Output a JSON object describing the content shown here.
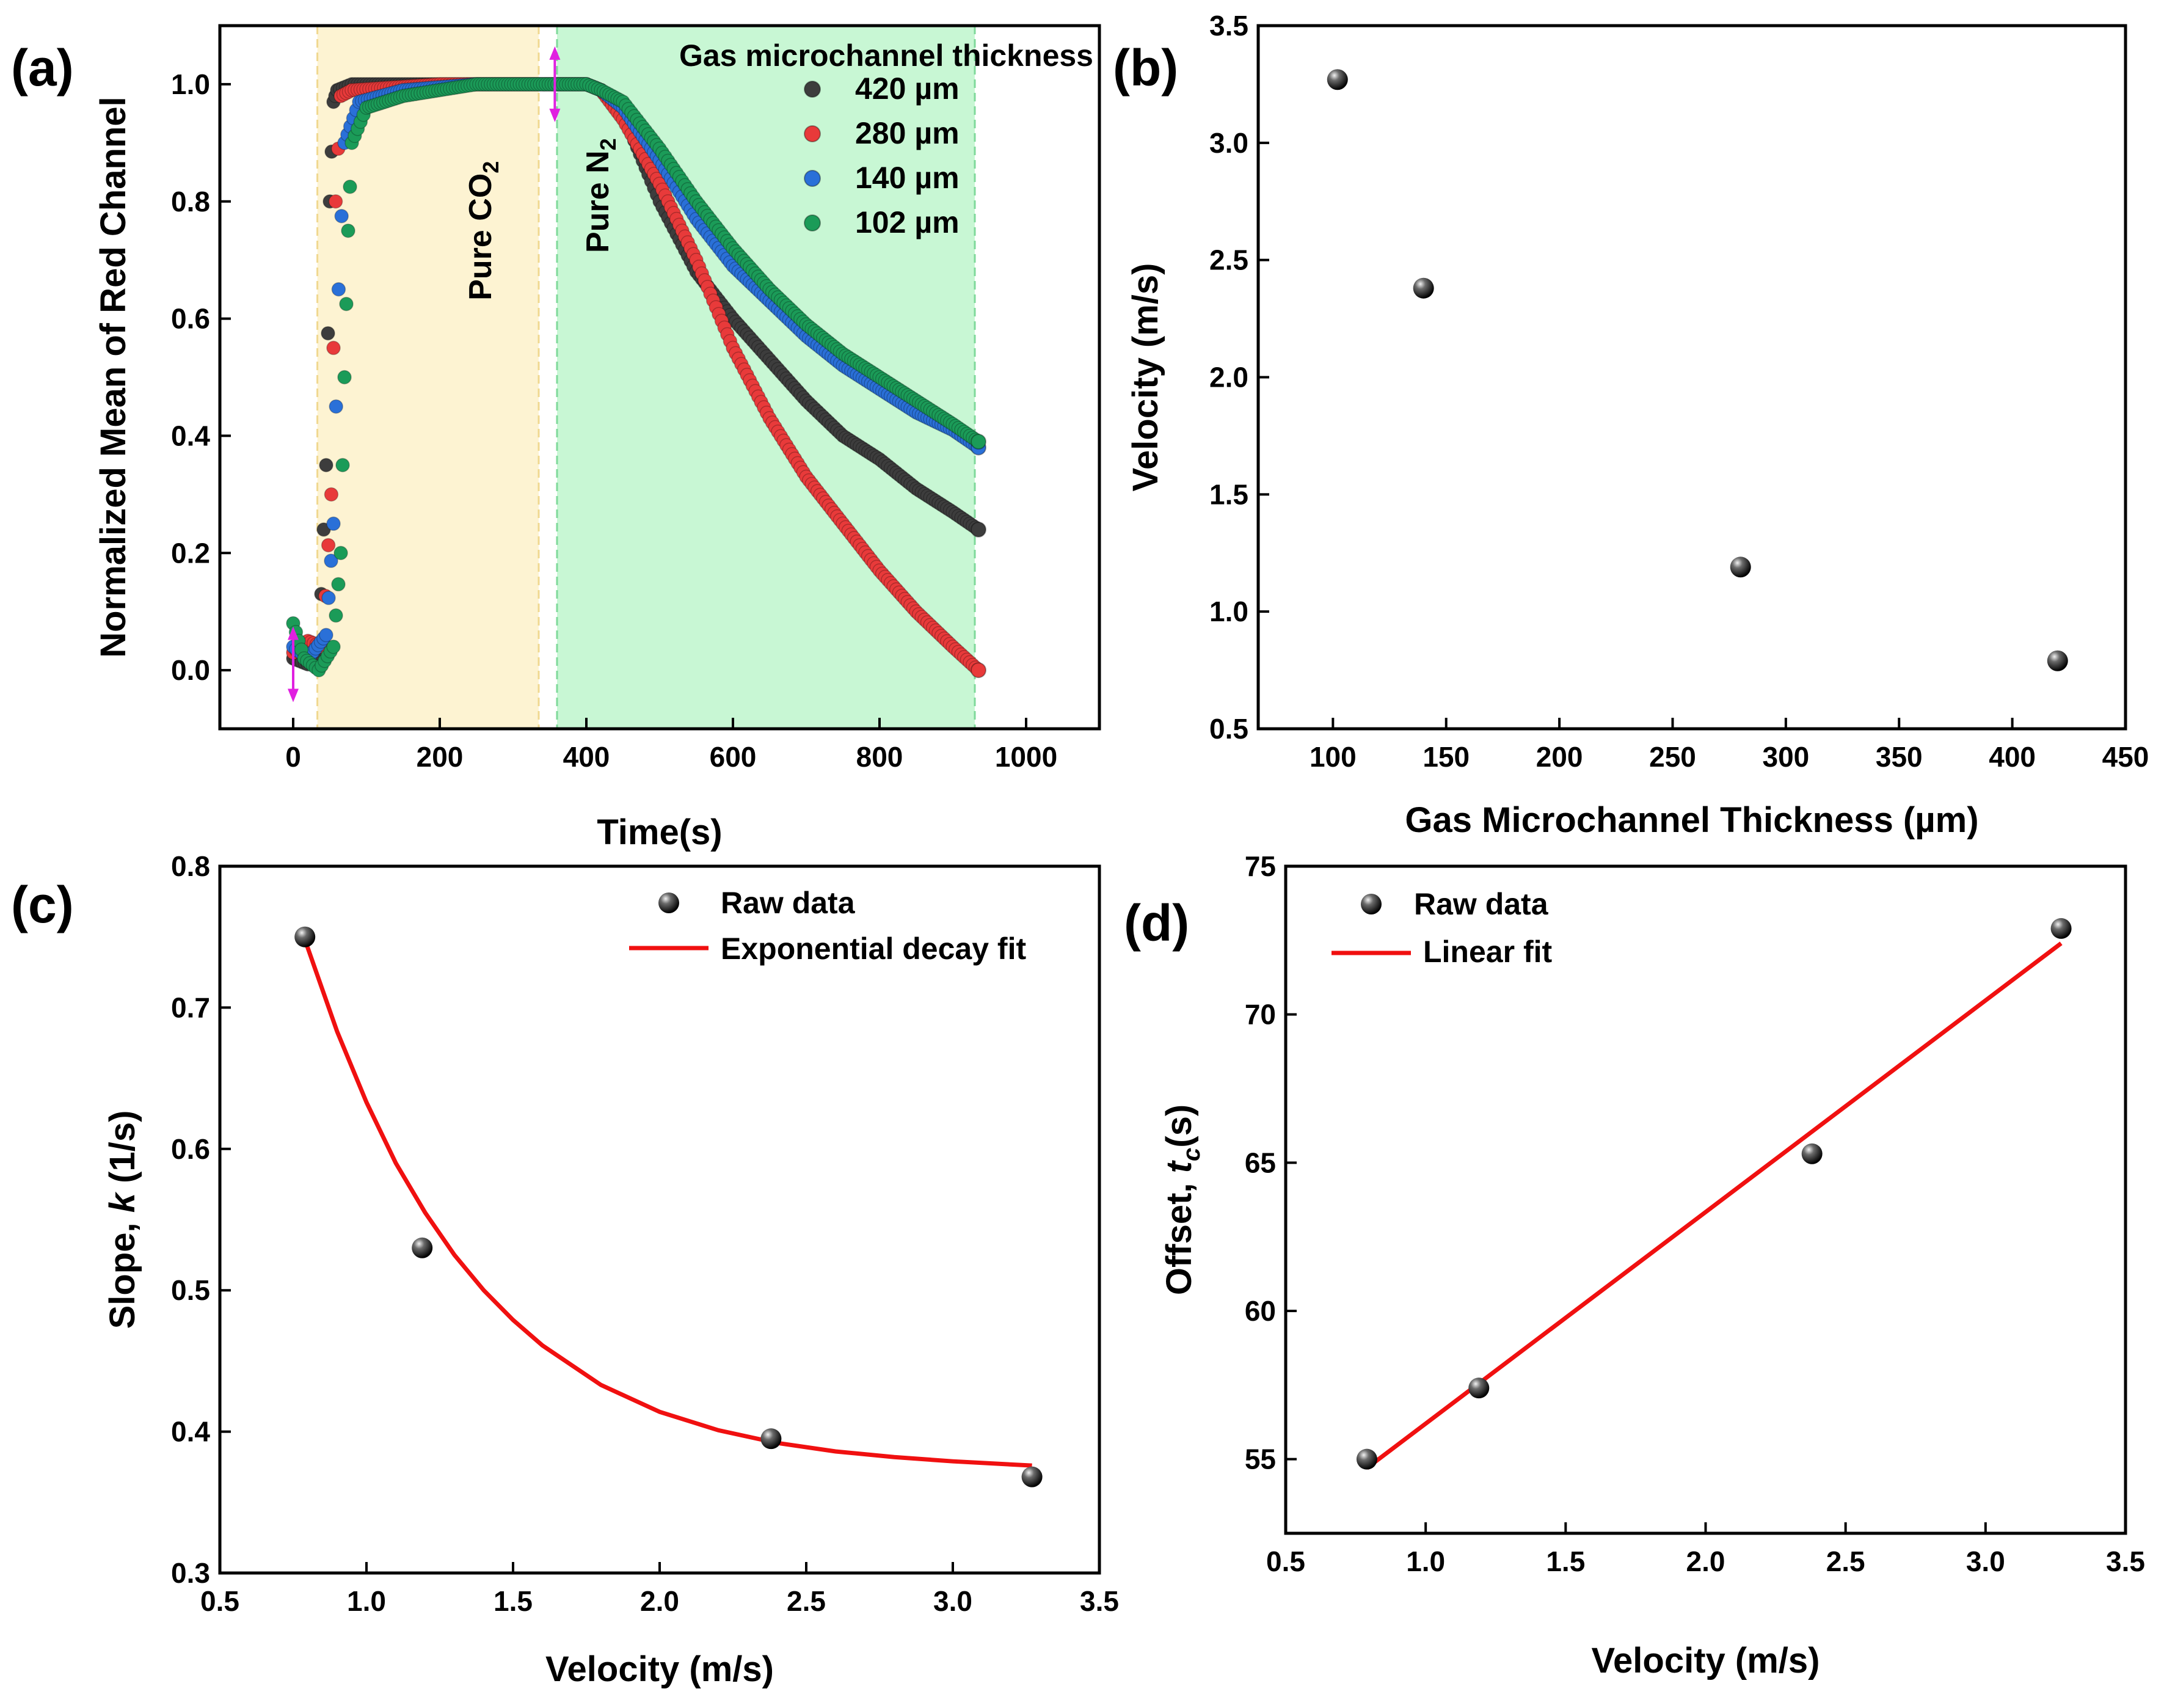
{
  "chart_data": [
    {
      "id": "a",
      "panel_label": "(a)",
      "type": "scatter",
      "xlabel": "Time(s)",
      "ylabel": "Normalized Mean of Red Channel",
      "xlim": [
        -100,
        1100
      ],
      "ylim": [
        -0.1,
        1.1
      ],
      "xticks": [
        0,
        200,
        400,
        600,
        800,
        1000
      ],
      "yticks": [
        0.0,
        0.2,
        0.4,
        0.6,
        0.8,
        1.0
      ],
      "ytick_labels": [
        "0.0",
        "0.2",
        "0.4",
        "0.6",
        "0.8",
        "1.0"
      ],
      "legend_title": "Gas microchannel thickness",
      "legend_position": "top-right",
      "regions": [
        {
          "label": "Pure CO",
          "subscript": "2",
          "x_range": [
            33,
            335
          ],
          "color": "#fdf3d2"
        },
        {
          "label": "Pure N",
          "subscript": "2",
          "x_range": [
            360,
            930
          ],
          "color": "#c8f7d4"
        }
      ],
      "markers_x": [
        0,
        357
      ],
      "series": [
        {
          "name": "420 µm",
          "color": "#3d3d3d",
          "points": [
            [
              0,
              0.02
            ],
            [
              20,
              0.01
            ],
            [
              35,
              0.02
            ],
            [
              45,
              0.35
            ],
            [
              50,
              0.8
            ],
            [
              55,
              0.97
            ],
            [
              60,
              0.99
            ],
            [
              80,
              1.0
            ],
            [
              200,
              1.0
            ],
            [
              300,
              1.0
            ],
            [
              400,
              1.0
            ],
            [
              420,
              0.99
            ],
            [
              450,
              0.95
            ],
            [
              500,
              0.8
            ],
            [
              550,
              0.68
            ],
            [
              600,
              0.6
            ],
            [
              650,
              0.53
            ],
            [
              700,
              0.46
            ],
            [
              750,
              0.4
            ],
            [
              800,
              0.36
            ],
            [
              850,
              0.31
            ],
            [
              900,
              0.27
            ],
            [
              935,
              0.24
            ]
          ]
        },
        {
          "name": "280 µm",
          "color": "#e83a3a",
          "points": [
            [
              0,
              0.03
            ],
            [
              20,
              0.05
            ],
            [
              40,
              0.04
            ],
            [
              52,
              0.3
            ],
            [
              58,
              0.8
            ],
            [
              65,
              0.98
            ],
            [
              80,
              0.99
            ],
            [
              200,
              1.0
            ],
            [
              300,
              1.0
            ],
            [
              400,
              1.0
            ],
            [
              420,
              0.99
            ],
            [
              450,
              0.94
            ],
            [
              500,
              0.83
            ],
            [
              550,
              0.7
            ],
            [
              600,
              0.55
            ],
            [
              650,
              0.43
            ],
            [
              700,
              0.33
            ],
            [
              750,
              0.25
            ],
            [
              800,
              0.17
            ],
            [
              850,
              0.1
            ],
            [
              900,
              0.04
            ],
            [
              935,
              0.0
            ]
          ]
        },
        {
          "name": "140 µm",
          "color": "#2a70d8",
          "points": [
            [
              0,
              0.04
            ],
            [
              20,
              0.02
            ],
            [
              45,
              0.06
            ],
            [
              55,
              0.25
            ],
            [
              62,
              0.65
            ],
            [
              70,
              0.9
            ],
            [
              90,
              0.97
            ],
            [
              150,
              0.99
            ],
            [
              250,
              1.0
            ],
            [
              400,
              1.0
            ],
            [
              420,
              0.99
            ],
            [
              450,
              0.96
            ],
            [
              500,
              0.87
            ],
            [
              550,
              0.77
            ],
            [
              600,
              0.69
            ],
            [
              650,
              0.63
            ],
            [
              700,
              0.57
            ],
            [
              750,
              0.52
            ],
            [
              800,
              0.48
            ],
            [
              850,
              0.44
            ],
            [
              900,
              0.41
            ],
            [
              935,
              0.38
            ]
          ]
        },
        {
          "name": "102 µm",
          "color": "#1b9b58",
          "points": [
            [
              0,
              0.08
            ],
            [
              15,
              0.02
            ],
            [
              35,
              0.0
            ],
            [
              55,
              0.04
            ],
            [
              65,
              0.2
            ],
            [
              70,
              0.5
            ],
            [
              75,
              0.75
            ],
            [
              80,
              0.9
            ],
            [
              100,
              0.96
            ],
            [
              150,
              0.98
            ],
            [
              250,
              1.0
            ],
            [
              400,
              1.0
            ],
            [
              420,
              0.99
            ],
            [
              450,
              0.97
            ],
            [
              500,
              0.89
            ],
            [
              550,
              0.8
            ],
            [
              600,
              0.72
            ],
            [
              650,
              0.65
            ],
            [
              700,
              0.59
            ],
            [
              750,
              0.54
            ],
            [
              800,
              0.5
            ],
            [
              850,
              0.46
            ],
            [
              900,
              0.42
            ],
            [
              935,
              0.39
            ]
          ]
        }
      ]
    },
    {
      "id": "b",
      "panel_label": "(b)",
      "type": "scatter",
      "xlabel": "Gas Microchannel Thickness (µm)",
      "ylabel": "Velocity (m/s)",
      "xlim": [
        67,
        450
      ],
      "ylim": [
        0.5,
        3.5
      ],
      "xticks": [
        100,
        150,
        200,
        250,
        300,
        350,
        400,
        450
      ],
      "yticks": [
        0.5,
        1.0,
        1.5,
        2.0,
        2.5,
        3.0,
        3.5
      ],
      "ytick_labels": [
        "0.5",
        "1.0",
        "1.5",
        "2.0",
        "2.5",
        "3.0",
        "3.5"
      ],
      "series": [
        {
          "name": "",
          "x": [
            102,
            140,
            280,
            420
          ],
          "y": [
            3.27,
            2.38,
            1.19,
            0.79
          ]
        }
      ]
    },
    {
      "id": "c",
      "panel_label": "(c)",
      "type": "scatter",
      "xlabel": "Velocity (m/s)",
      "ylabel_parts": [
        "Slope, ",
        "k",
        " (1/s)"
      ],
      "xlim": [
        0.5,
        3.5
      ],
      "ylim": [
        0.3,
        0.8
      ],
      "xticks": [
        0.5,
        1.0,
        1.5,
        2.0,
        2.5,
        3.0,
        3.5
      ],
      "xtick_labels": [
        "0.5",
        "1.0",
        "1.5",
        "2.0",
        "2.5",
        "3.0",
        "3.5"
      ],
      "yticks": [
        0.3,
        0.4,
        0.5,
        0.6,
        0.7,
        0.8
      ],
      "ytick_labels": [
        "0.3",
        "0.4",
        "0.5",
        "0.6",
        "0.7",
        "0.8"
      ],
      "legend": [
        "Raw data",
        "Exponential decay fit"
      ],
      "legend_position": "top-right",
      "raw": {
        "x": [
          0.79,
          1.19,
          2.38,
          3.27
        ],
        "y": [
          0.75,
          0.53,
          0.395,
          0.368
        ]
      },
      "fit": {
        "x": [
          0.79,
          0.9,
          1.0,
          1.1,
          1.2,
          1.3,
          1.4,
          1.5,
          1.6,
          1.8,
          2.0,
          2.2,
          2.4,
          2.6,
          2.8,
          3.0,
          3.27
        ],
        "y": [
          0.748,
          0.683,
          0.633,
          0.59,
          0.555,
          0.525,
          0.5,
          0.479,
          0.461,
          0.433,
          0.414,
          0.401,
          0.392,
          0.386,
          0.382,
          0.379,
          0.376
        ]
      }
    },
    {
      "id": "d",
      "panel_label": "(d)",
      "type": "scatter",
      "xlabel": "Velocity (m/s)",
      "ylabel_parts": [
        "Offset, ",
        "t",
        "c",
        "(s)"
      ],
      "xlim": [
        0.5,
        3.5
      ],
      "ylim": [
        52.5,
        75
      ],
      "xticks": [
        0.5,
        1.0,
        1.5,
        2.0,
        2.5,
        3.0,
        3.5
      ],
      "xtick_labels": [
        "0.5",
        "1.0",
        "1.5",
        "2.0",
        "2.5",
        "3.0",
        "3.5"
      ],
      "yticks": [
        55,
        60,
        65,
        70,
        75
      ],
      "ytick_labels": [
        "55",
        "60",
        "65",
        "70",
        "75"
      ],
      "legend": [
        "Raw data",
        "Linear fit"
      ],
      "legend_position": "top-left",
      "raw": {
        "x": [
          0.79,
          1.19,
          2.38,
          3.27
        ],
        "y": [
          55.0,
          57.4,
          65.3,
          72.9
        ]
      },
      "fit": {
        "x": [
          0.79,
          3.27
        ],
        "y": [
          54.7,
          72.4
        ]
      }
    }
  ]
}
